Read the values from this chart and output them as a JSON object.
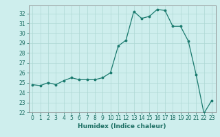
{
  "x": [
    0,
    1,
    2,
    3,
    4,
    5,
    6,
    7,
    8,
    9,
    10,
    11,
    12,
    13,
    14,
    15,
    16,
    17,
    18,
    19,
    20,
    21,
    22,
    23
  ],
  "y": [
    24.8,
    24.7,
    25.0,
    24.8,
    25.2,
    25.5,
    25.3,
    25.3,
    25.3,
    25.5,
    26.0,
    28.7,
    29.3,
    32.2,
    31.5,
    31.7,
    32.4,
    32.3,
    30.7,
    30.7,
    29.2,
    25.8,
    21.9,
    23.2
  ],
  "line_color": "#1a7a6e",
  "marker": "o",
  "markersize": 1.8,
  "linewidth": 0.9,
  "bg_color": "#ceeeed",
  "grid_color": "#aed8d4",
  "xlabel": "Humidex (Indice chaleur)",
  "ylim": [
    22,
    32.8
  ],
  "xlim": [
    -0.5,
    23.5
  ],
  "yticks": [
    22,
    23,
    24,
    25,
    26,
    27,
    28,
    29,
    30,
    31,
    32
  ],
  "xticks": [
    0,
    1,
    2,
    3,
    4,
    5,
    6,
    7,
    8,
    9,
    10,
    11,
    12,
    13,
    14,
    15,
    16,
    17,
    18,
    19,
    20,
    21,
    22,
    23
  ],
  "tick_label_fontsize": 5.5,
  "xlabel_fontsize": 6.5,
  "tick_color": "#1a6e62",
  "axis_color": "#1a6e62",
  "spine_color": "#888888"
}
